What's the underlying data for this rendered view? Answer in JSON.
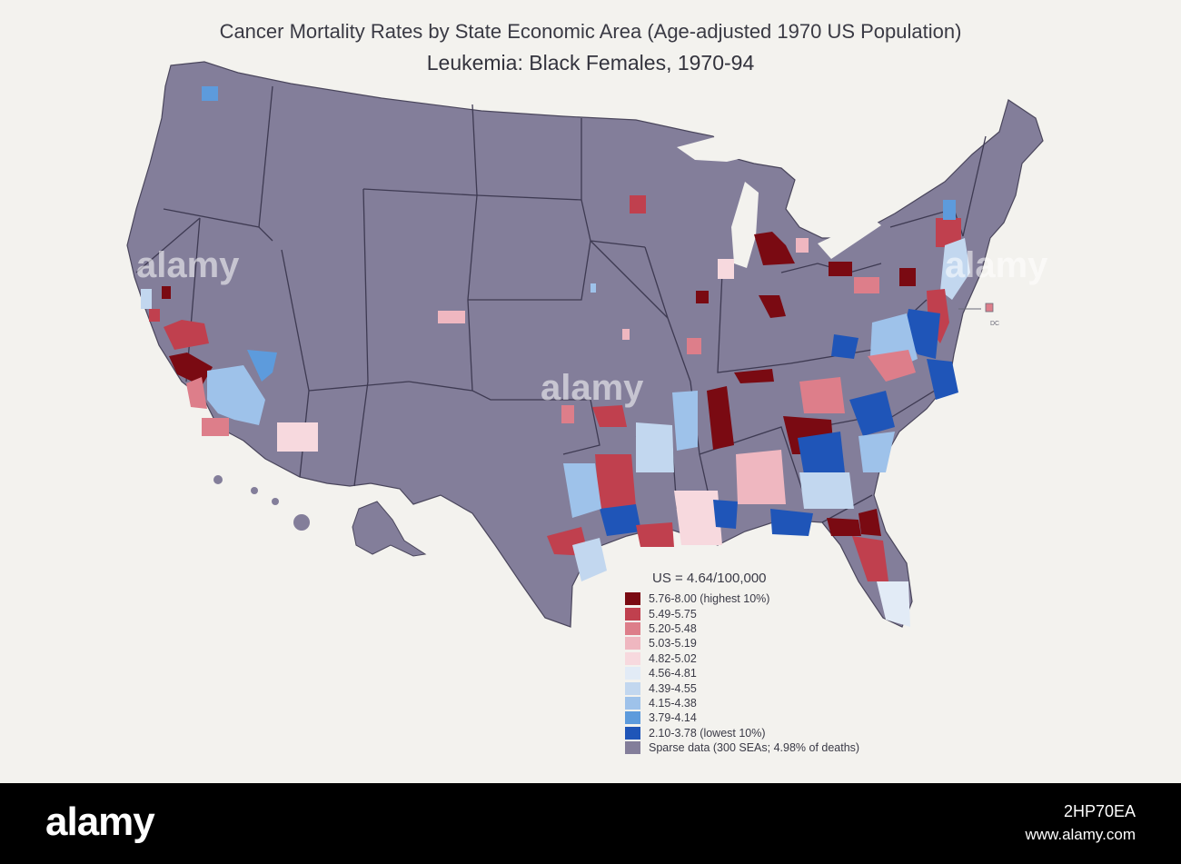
{
  "title": "Cancer Mortality Rates by State Economic Area (Age-adjusted 1970 US Population)",
  "subtitle": "Leukemia:  Black Females, 1970-94",
  "legend": {
    "us_rate": "US = 4.64/100,000",
    "items": [
      {
        "label": "5.76-8.00 (highest 10%)",
        "color": "#7a0a12"
      },
      {
        "label": "5.49-5.75",
        "color": "#c0404e"
      },
      {
        "label": "5.20-5.48",
        "color": "#dd7e8a"
      },
      {
        "label": "5.03-5.19",
        "color": "#efb7c0"
      },
      {
        "label": "4.82-5.02",
        "color": "#f7d9de"
      },
      {
        "label": "4.56-4.81",
        "color": "#e2ebf6"
      },
      {
        "label": "4.39-4.55",
        "color": "#c2d7ef"
      },
      {
        "label": "4.15-4.38",
        "color": "#9ec2ea"
      },
      {
        "label": "3.79-4.14",
        "color": "#5d9bdc"
      },
      {
        "label": "2.10-3.78 (lowest 10%)",
        "color": "#1f55b8"
      },
      {
        "label": "Sparse data (300 SEAs; 4.98% of deaths)",
        "color": "#837e9a"
      }
    ]
  },
  "map_labels": {
    "dc": "DC"
  },
  "watermark": "alamy",
  "footer": {
    "brand": "alamy",
    "image_id": "2HP70EA",
    "site": "www.alamy.com"
  }
}
